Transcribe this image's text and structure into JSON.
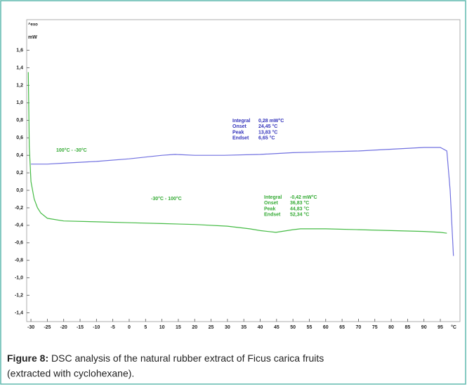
{
  "chart_data": {
    "type": "line",
    "y_unit": "mW",
    "top_note": "^exo",
    "x_unit": "°C",
    "xlim": [
      -31.3,
      101
    ],
    "ylim": [
      -1.5,
      1.95
    ],
    "xticks": [
      -30,
      -25,
      -20,
      -15,
      -10,
      -5,
      0,
      5,
      10,
      15,
      20,
      25,
      30,
      35,
      40,
      45,
      50,
      55,
      60,
      65,
      70,
      75,
      80,
      85,
      90,
      95
    ],
    "yticks": [
      {
        "value": -1.4,
        "label": "-1,4"
      },
      {
        "value": -1.2,
        "label": "-1,2"
      },
      {
        "value": -1.0,
        "label": "-1,0"
      },
      {
        "value": -0.8,
        "label": "-0,8"
      },
      {
        "value": -0.6,
        "label": "-0,6"
      },
      {
        "value": -0.4,
        "label": "-0,4"
      },
      {
        "value": -0.2,
        "label": "-0,2"
      },
      {
        "value": 0,
        "label": "0,0"
      },
      {
        "value": 0.2,
        "label": "0,2"
      },
      {
        "value": 0.4,
        "label": "0,4"
      },
      {
        "value": 0.6,
        "label": "0,6"
      },
      {
        "value": 0.8,
        "label": "0,8"
      },
      {
        "value": 1.0,
        "label": "1,0"
      },
      {
        "value": 1.2,
        "label": "1,2"
      },
      {
        "value": 1.4,
        "label": "1,4"
      },
      {
        "value": 1.6,
        "label": "1,6"
      }
    ],
    "series": [
      {
        "name": "100°C - -30°C",
        "color": "#7070e0",
        "x": [
          -30,
          -25,
          -20,
          -10,
          0,
          5,
          10,
          14,
          20,
          29,
          40,
          50,
          60,
          70,
          80,
          90,
          95,
          97,
          98,
          99
        ],
        "values": [
          0.3,
          0.3,
          0.31,
          0.33,
          0.36,
          0.38,
          0.4,
          0.41,
          0.4,
          0.4,
          0.41,
          0.43,
          0.44,
          0.45,
          0.47,
          0.49,
          0.49,
          0.45,
          0.0,
          -0.75
        ]
      },
      {
        "name": "-30°C - 100°C",
        "color": "#44bb44",
        "x": [
          -30.8,
          -30.5,
          -30,
          -29,
          -28,
          -27,
          -25,
          -20,
          -10,
          0,
          10,
          20,
          30,
          36.8,
          40,
          44.8,
          50,
          52.3,
          55,
          60,
          70,
          80,
          90,
          95,
          97
        ],
        "values": [
          1.35,
          0.5,
          0.1,
          -0.1,
          -0.2,
          -0.26,
          -0.32,
          -0.35,
          -0.36,
          -0.37,
          -0.38,
          -0.39,
          -0.41,
          -0.44,
          -0.46,
          -0.48,
          -0.45,
          -0.44,
          -0.44,
          -0.44,
          -0.45,
          -0.46,
          -0.47,
          -0.48,
          -0.49
        ]
      }
    ],
    "annotations": [
      {
        "color": "#3333bb",
        "rows": [
          [
            "Integral",
            "0,28 mW°C"
          ],
          [
            "Onset",
            "24,45 °C"
          ],
          [
            "Peak",
            "13,83 °C"
          ],
          [
            "Endset",
            "6,65 °C"
          ]
        ]
      },
      {
        "color": "#33aa33",
        "rows": [
          [
            "Integral",
            "-0,42 mW°C"
          ],
          [
            "Onset",
            "36,83 °C"
          ],
          [
            "Peak",
            "44,83 °C"
          ],
          [
            "Endset",
            "52,34 °C"
          ]
        ]
      }
    ]
  },
  "caption": {
    "label": "Figure 8:",
    "text": "DSC analysis of the natural rubber extract of Ficus carica fruits",
    "text2": "(extracted with cyclohexane)."
  }
}
